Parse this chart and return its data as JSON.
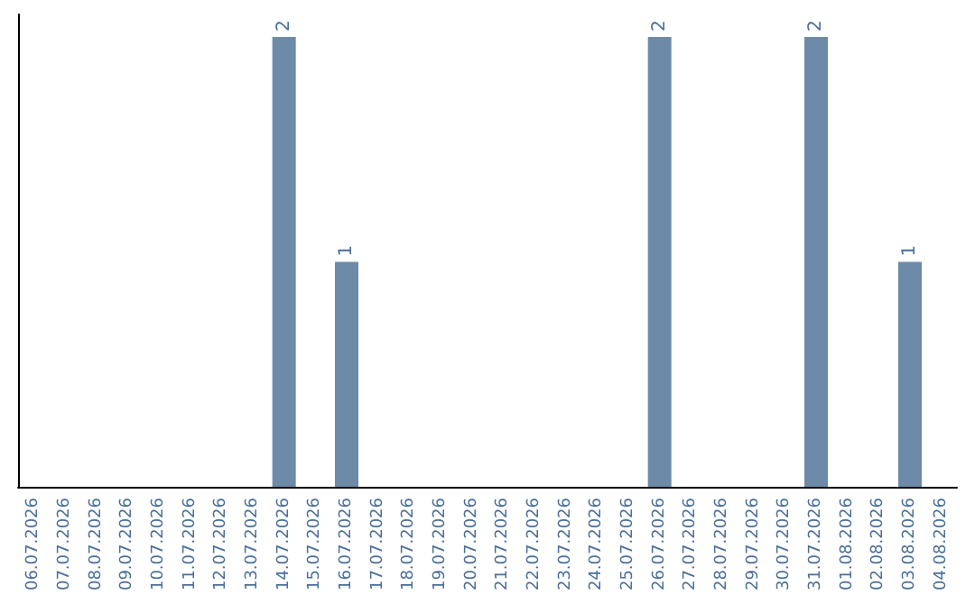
{
  "chart_data": {
    "type": "bar",
    "categories": [
      "06.07.2026",
      "07.07.2026",
      "08.07.2026",
      "09.07.2026",
      "10.07.2026",
      "11.07.2026",
      "12.07.2026",
      "13.07.2026",
      "14.07.2026",
      "15.07.2026",
      "16.07.2026",
      "17.07.2026",
      "18.07.2026",
      "19.07.2026",
      "20.07.2026",
      "21.07.2026",
      "22.07.2026",
      "23.07.2026",
      "24.07.2026",
      "25.07.2026",
      "26.07.2026",
      "27.07.2026",
      "28.07.2026",
      "29.07.2026",
      "30.07.2026",
      "31.07.2026",
      "01.08.2026",
      "02.08.2026",
      "03.08.2026",
      "04.08.2026"
    ],
    "values": [
      0,
      0,
      0,
      0,
      0,
      0,
      0,
      0,
      2,
      0,
      1,
      0,
      0,
      0,
      0,
      0,
      0,
      0,
      0,
      0,
      2,
      0,
      0,
      0,
      0,
      2,
      0,
      0,
      1,
      0
    ],
    "value_labels": [
      null,
      null,
      null,
      null,
      null,
      null,
      null,
      null,
      "2",
      null,
      "1",
      null,
      null,
      null,
      null,
      null,
      null,
      null,
      null,
      null,
      "2",
      null,
      null,
      null,
      null,
      "2",
      null,
      null,
      "1",
      null
    ],
    "color": "#6d8ba8",
    "grid": false,
    "tick_labels": "x"
  }
}
